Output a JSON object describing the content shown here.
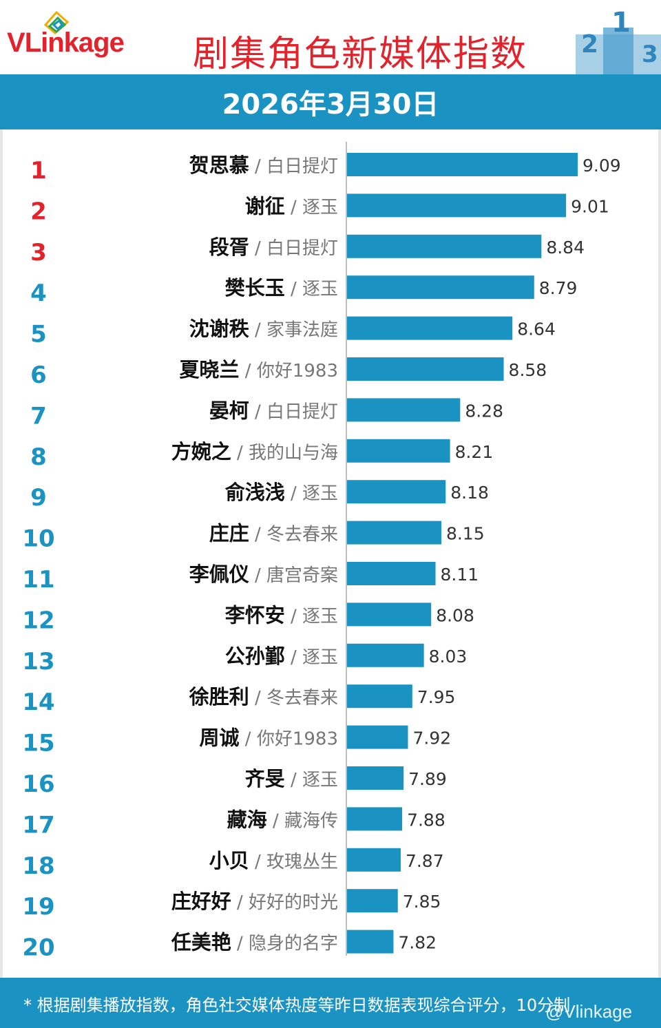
{
  "header": {
    "logo_v": "V",
    "logo_rest": "Linkage",
    "title": "剧集角色新媒体指数",
    "podium_icon": "podium-2-1-3-icon"
  },
  "date": "2026年3月30日",
  "colors": {
    "accent": "#1a92c2",
    "rank_top3": "#e3232c",
    "rank_other": "#1a92c2",
    "title_red": "#e3232c"
  },
  "chart_data": {
    "type": "bar",
    "orientation": "horizontal",
    "categories": [
      {
        "rank": "1",
        "name": "贺思慕",
        "show": "白日提灯",
        "value": 9.09
      },
      {
        "rank": "2",
        "name": "谢征",
        "show": "逐玉",
        "value": 9.01
      },
      {
        "rank": "3",
        "name": "段胥",
        "show": "白日提灯",
        "value": 8.84
      },
      {
        "rank": "4",
        "name": "樊长玉",
        "show": "逐玉",
        "value": 8.79
      },
      {
        "rank": "5",
        "name": "沈谢秩",
        "show": "家事法庭",
        "value": 8.64
      },
      {
        "rank": "6",
        "name": "夏晓兰",
        "show": "你好1983",
        "value": 8.58
      },
      {
        "rank": "7",
        "name": "晏柯",
        "show": "白日提灯",
        "value": 8.28
      },
      {
        "rank": "8",
        "name": "方婉之",
        "show": "我的山与海",
        "value": 8.21
      },
      {
        "rank": "9",
        "name": "俞浅浅",
        "show": "逐玉",
        "value": 8.18
      },
      {
        "rank": "10",
        "name": "庄庄",
        "show": "冬去春来",
        "value": 8.15
      },
      {
        "rank": "11",
        "name": "李佩仪",
        "show": "唐宫奇案",
        "value": 8.11
      },
      {
        "rank": "12",
        "name": "李怀安",
        "show": "逐玉",
        "value": 8.08
      },
      {
        "rank": "13",
        "name": "公孙鄞",
        "show": "逐玉",
        "value": 8.03
      },
      {
        "rank": "14",
        "name": "徐胜利",
        "show": "冬去春来",
        "value": 7.95
      },
      {
        "rank": "15",
        "name": "周诚",
        "show": "你好1983",
        "value": 7.92
      },
      {
        "rank": "16",
        "name": "齐旻",
        "show": "逐玉",
        "value": 7.89
      },
      {
        "rank": "17",
        "name": "藏海",
        "show": "藏海传",
        "value": 7.88
      },
      {
        "rank": "18",
        "name": "小贝",
        "show": "玫瑰丛生",
        "value": 7.87
      },
      {
        "rank": "19",
        "name": "庄好好",
        "show": "好好的时光",
        "value": 7.85
      },
      {
        "rank": "20",
        "name": "任美艳",
        "show": "隐身的名字",
        "value": 7.82
      }
    ],
    "separator": " / ",
    "axis_baseline_value": 7.5,
    "axis_max_value": 9.2,
    "grid": false
  },
  "footer": {
    "note": "* 根据剧集播放指数，角色社交媒体热度等昨日数据表现综合评分，10分制",
    "watermark": "@Vlinkage"
  }
}
